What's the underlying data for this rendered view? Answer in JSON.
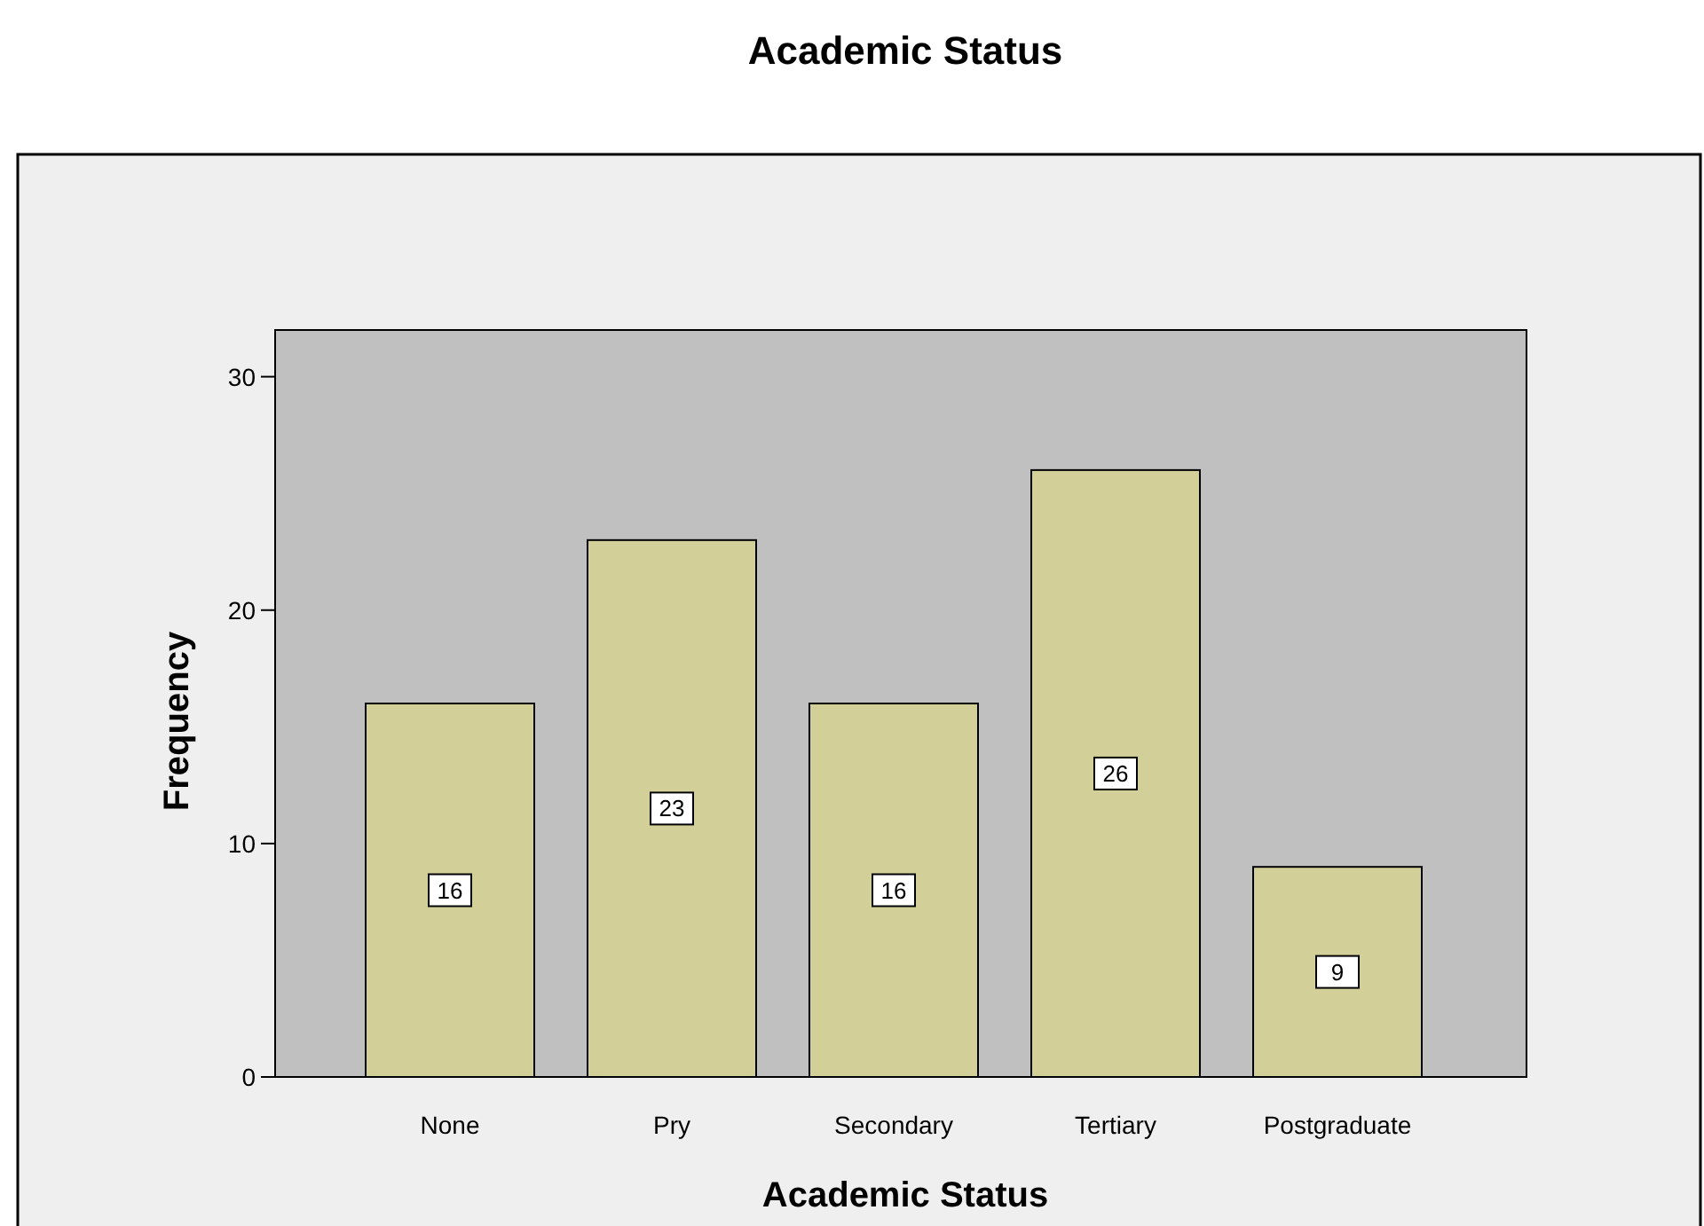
{
  "chart_data": {
    "type": "bar",
    "title": "Academic Status",
    "xlabel": "Academic Status",
    "ylabel": "Frequency",
    "categories": [
      "None",
      "Pry",
      "Secondary",
      "Tertiary",
      "Postgraduate"
    ],
    "values": [
      16,
      23,
      16,
      26,
      9
    ],
    "color": "#d3cf98",
    "ylim": [
      0,
      32
    ],
    "yticks": [
      0,
      10,
      20,
      30
    ],
    "grid": false,
    "data_labels": true
  }
}
